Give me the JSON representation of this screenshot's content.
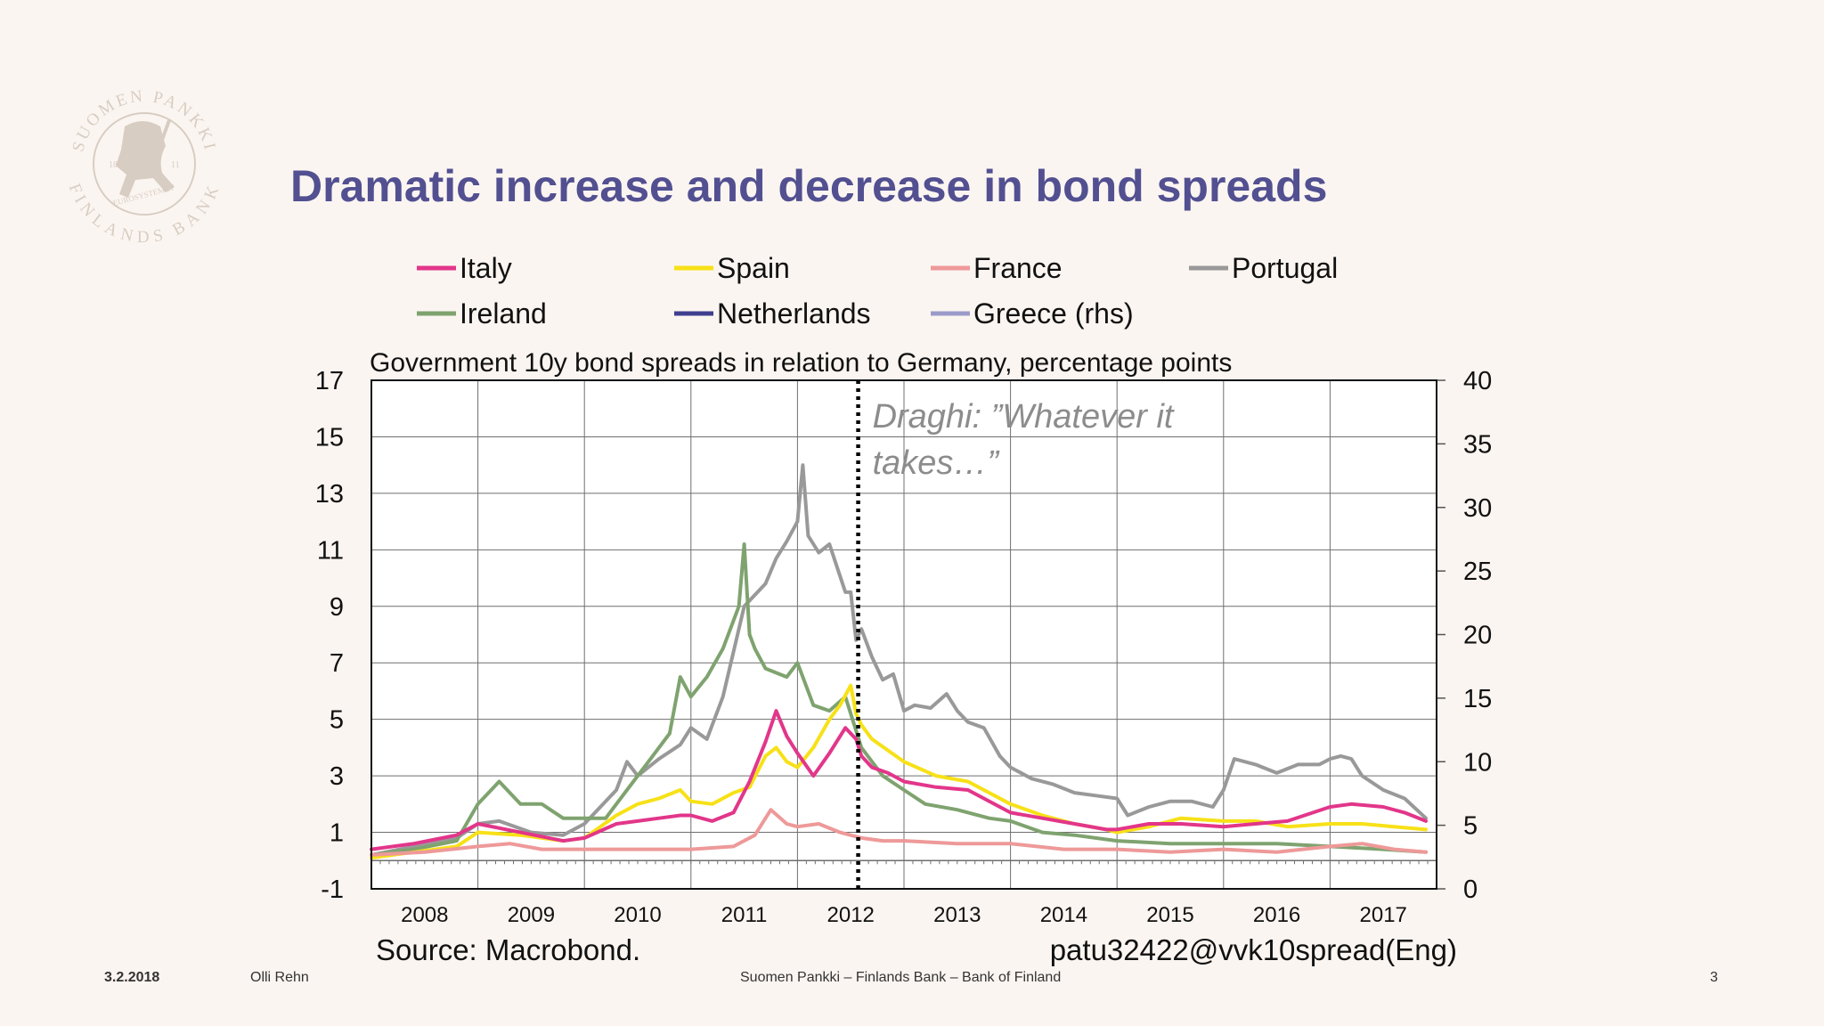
{
  "slide": {
    "title": "Dramatic increase and decrease in bond spreads",
    "source": "Source: Macrobond.",
    "code": "patu32422@vvk10spread(Eng)"
  },
  "footer": {
    "date": "3.2.2018",
    "author": "Olli Rehn",
    "organization": "Suomen Pankki – Finlands Bank – Bank of Finland",
    "page": "3"
  },
  "logo": {
    "top_text": "SUOMEN PANKKI",
    "bottom_text": "FINLANDS BANK",
    "inner_text": "EUROSYSTEMET",
    "year_left": "18",
    "year_right": "11",
    "color": "#d8cdc2"
  },
  "chart_data": {
    "type": "line",
    "title": "Government 10y bond spreads in relation to Germany, percentage points",
    "y_left": {
      "ylim": [
        -1,
        17
      ],
      "ticks": [
        "17",
        "15",
        "13",
        "11",
        "9",
        "7",
        "5",
        "3",
        "1",
        "-1"
      ]
    },
    "y_right": {
      "ylim": [
        0,
        40
      ],
      "ticks": [
        "40",
        "35",
        "30",
        "25",
        "20",
        "15",
        "10",
        "5",
        "0"
      ]
    },
    "x_range": [
      2008,
      2018
    ],
    "x_ticks": [
      "2008",
      "2009",
      "2010",
      "2011",
      "2012",
      "2013",
      "2014",
      "2015",
      "2016",
      "2017"
    ],
    "grid": true,
    "legend_placement": "top",
    "legend": [
      {
        "name": "Italy",
        "color": "#e2368a"
      },
      {
        "name": "Spain",
        "color": "#f7e117"
      },
      {
        "name": "France",
        "color": "#ee9999"
      },
      {
        "name": "Portugal",
        "color": "#999999"
      },
      {
        "name": "Ireland",
        "color": "#7fa36f"
      },
      {
        "name": "Netherlands",
        "color": "#3f3f8f"
      },
      {
        "name": "Greece (rhs)",
        "color": "#9b9bc9"
      }
    ],
    "annotation": {
      "lines": [
        "Draghi: ”Whatever it",
        "takes…”"
      ],
      "x": 2012.57
    },
    "series": [
      {
        "name": "Portugal",
        "axis": "left",
        "color": "#999999",
        "x": [
          2008.0,
          2008.4,
          2008.8,
          2009.0,
          2009.2,
          2009.5,
          2009.8,
          2010.0,
          2010.3,
          2010.4,
          2010.5,
          2010.7,
          2010.9,
          2011.0,
          2011.15,
          2011.3,
          2011.5,
          2011.7,
          2011.8,
          2011.9,
          2012.0,
          2012.05,
          2012.1,
          2012.2,
          2012.3,
          2012.45,
          2012.5,
          2012.55,
          2012.6,
          2012.7,
          2012.8,
          2012.9,
          2013.0,
          2013.1,
          2013.25,
          2013.4,
          2013.5,
          2013.6,
          2013.75,
          2013.9,
          2014.0,
          2014.2,
          2014.4,
          2014.6,
          2014.8,
          2015.0,
          2015.1,
          2015.3,
          2015.5,
          2015.7,
          2015.9,
          2016.0,
          2016.1,
          2016.3,
          2016.5,
          2016.7,
          2016.9,
          2017.0,
          2017.1,
          2017.2,
          2017.3,
          2017.5,
          2017.7,
          2017.9
        ],
        "y": [
          0.2,
          0.5,
          0.8,
          1.3,
          1.4,
          1.0,
          0.9,
          1.3,
          2.5,
          3.5,
          3.0,
          3.6,
          4.1,
          4.7,
          4.3,
          5.8,
          9.0,
          9.8,
          10.7,
          11.3,
          12.0,
          14.0,
          11.5,
          10.9,
          11.2,
          9.5,
          9.5,
          7.8,
          8.2,
          7.2,
          6.4,
          6.6,
          5.3,
          5.5,
          5.4,
          5.9,
          5.3,
          4.9,
          4.7,
          3.7,
          3.3,
          2.9,
          2.7,
          2.4,
          2.3,
          2.2,
          1.6,
          1.9,
          2.1,
          2.1,
          1.9,
          2.5,
          3.6,
          3.4,
          3.1,
          3.4,
          3.4,
          3.6,
          3.7,
          3.6,
          3.0,
          2.5,
          2.2,
          1.5
        ]
      },
      {
        "name": "Ireland",
        "axis": "left",
        "color": "#7fa36f",
        "x": [
          2008.0,
          2008.4,
          2008.8,
          2009.0,
          2009.2,
          2009.4,
          2009.6,
          2009.8,
          2010.0,
          2010.2,
          2010.4,
          2010.6,
          2010.8,
          2010.9,
          2011.0,
          2011.15,
          2011.3,
          2011.45,
          2011.5,
          2011.55,
          2011.6,
          2011.7,
          2011.9,
          2012.0,
          2012.15,
          2012.3,
          2012.45,
          2012.6,
          2012.8,
          2013.0,
          2013.2,
          2013.5,
          2013.8,
          2014.0,
          2014.3,
          2014.6,
          2015.0,
          2015.5,
          2016.0,
          2016.5,
          2017.0,
          2017.5,
          2017.9
        ],
        "y": [
          0.2,
          0.4,
          0.7,
          2.0,
          2.8,
          2.0,
          2.0,
          1.5,
          1.5,
          1.5,
          2.5,
          3.5,
          4.5,
          6.5,
          5.8,
          6.5,
          7.5,
          9.0,
          11.2,
          8.0,
          7.5,
          6.8,
          6.5,
          7.0,
          5.5,
          5.3,
          5.8,
          4.0,
          3.0,
          2.5,
          2.0,
          1.8,
          1.5,
          1.4,
          1.0,
          0.9,
          0.7,
          0.6,
          0.6,
          0.6,
          0.5,
          0.4,
          0.3
        ]
      },
      {
        "name": "Spain",
        "axis": "left",
        "color": "#f7e117",
        "x": [
          2008.0,
          2008.4,
          2008.8,
          2009.0,
          2009.4,
          2009.8,
          2010.0,
          2010.3,
          2010.5,
          2010.7,
          2010.9,
          2011.0,
          2011.2,
          2011.4,
          2011.55,
          2011.7,
          2011.8,
          2011.9,
          2012.0,
          2012.15,
          2012.3,
          2012.4,
          2012.5,
          2012.55,
          2012.6,
          2012.7,
          2012.85,
          2013.0,
          2013.3,
          2013.6,
          2014.0,
          2014.3,
          2014.6,
          2014.9,
          2015.0,
          2015.3,
          2015.6,
          2016.0,
          2016.3,
          2016.6,
          2017.0,
          2017.3,
          2017.6,
          2017.9
        ],
        "y": [
          0.1,
          0.3,
          0.5,
          1.0,
          0.9,
          0.7,
          0.8,
          1.6,
          2.0,
          2.2,
          2.5,
          2.1,
          2.0,
          2.4,
          2.6,
          3.7,
          4.0,
          3.5,
          3.3,
          4.0,
          5.0,
          5.5,
          6.2,
          5.2,
          4.8,
          4.3,
          3.9,
          3.5,
          3.0,
          2.8,
          2.0,
          1.6,
          1.3,
          1.1,
          1.0,
          1.2,
          1.5,
          1.4,
          1.4,
          1.2,
          1.3,
          1.3,
          1.2,
          1.1
        ]
      },
      {
        "name": "Italy",
        "axis": "left",
        "color": "#e2368a",
        "x": [
          2008.0,
          2008.4,
          2008.8,
          2009.0,
          2009.4,
          2009.8,
          2010.0,
          2010.3,
          2010.5,
          2010.7,
          2010.9,
          2011.0,
          2011.2,
          2011.4,
          2011.55,
          2011.7,
          2011.8,
          2011.9,
          2012.0,
          2012.15,
          2012.3,
          2012.45,
          2012.55,
          2012.6,
          2012.7,
          2012.85,
          2013.0,
          2013.3,
          2013.6,
          2014.0,
          2014.3,
          2014.6,
          2014.9,
          2015.0,
          2015.3,
          2015.6,
          2016.0,
          2016.3,
          2016.6,
          2017.0,
          2017.2,
          2017.5,
          2017.7,
          2017.9
        ],
        "y": [
          0.4,
          0.6,
          0.9,
          1.3,
          1.0,
          0.7,
          0.8,
          1.3,
          1.4,
          1.5,
          1.6,
          1.6,
          1.4,
          1.7,
          2.8,
          4.2,
          5.3,
          4.4,
          3.8,
          3.0,
          3.8,
          4.7,
          4.3,
          3.7,
          3.3,
          3.1,
          2.8,
          2.6,
          2.5,
          1.7,
          1.5,
          1.3,
          1.1,
          1.1,
          1.3,
          1.3,
          1.2,
          1.3,
          1.4,
          1.9,
          2.0,
          1.9,
          1.7,
          1.4
        ]
      },
      {
        "name": "France",
        "axis": "left",
        "color": "#ee9999",
        "x": [
          2008.0,
          2008.5,
          2009.0,
          2009.3,
          2009.6,
          2010.0,
          2010.5,
          2011.0,
          2011.4,
          2011.6,
          2011.75,
          2011.9,
          2012.0,
          2012.2,
          2012.4,
          2012.6,
          2012.8,
          2013.0,
          2013.5,
          2014.0,
          2014.5,
          2015.0,
          2015.5,
          2016.0,
          2016.5,
          2017.0,
          2017.3,
          2017.6,
          2017.9
        ],
        "y": [
          0.2,
          0.3,
          0.5,
          0.6,
          0.4,
          0.4,
          0.4,
          0.4,
          0.5,
          0.9,
          1.8,
          1.3,
          1.2,
          1.3,
          1.0,
          0.8,
          0.7,
          0.7,
          0.6,
          0.6,
          0.4,
          0.4,
          0.3,
          0.4,
          0.3,
          0.5,
          0.6,
          0.4,
          0.3
        ]
      }
    ]
  }
}
